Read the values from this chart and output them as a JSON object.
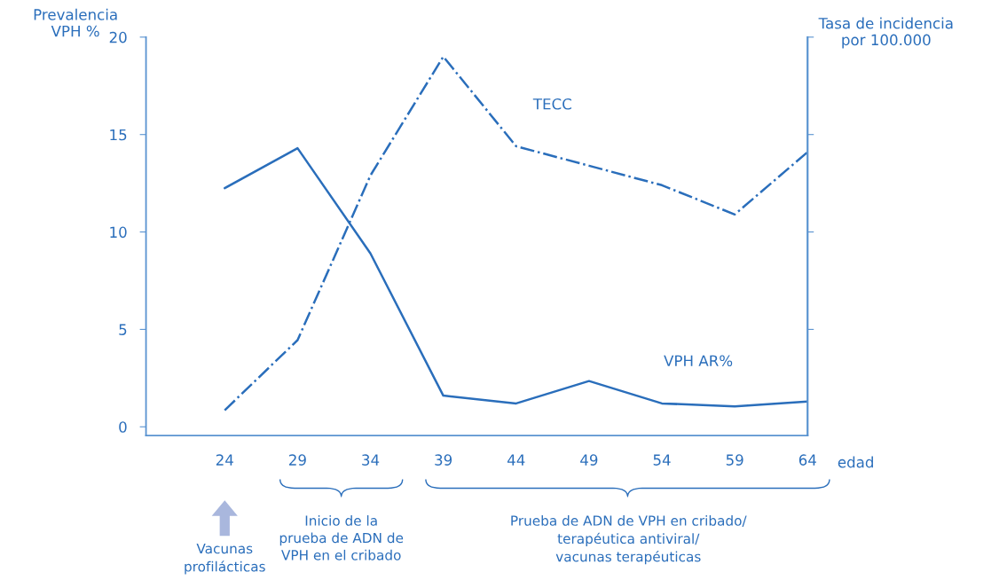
{
  "chart_data": {
    "type": "line",
    "ylabel": "Prevalencia\nVPH %",
    "y2label": "Tasa de incidencia\npor 100.000",
    "xlabel": "edad",
    "x": [
      24,
      29,
      34,
      39,
      44,
      49,
      54,
      59,
      64
    ],
    "xlim": [
      18.6,
      64
    ],
    "xticks": [
      24,
      29,
      34,
      39,
      44,
      49,
      54,
      59,
      64
    ],
    "ylim": [
      -0.45,
      20
    ],
    "yticks": [
      0,
      5,
      10,
      15,
      20
    ],
    "grid": false,
    "legend": false,
    "marker": "none",
    "series": [
      {
        "name": "VPH AR%",
        "color": "#2a6ebb",
        "line_style": "solid",
        "values": [
          12.25,
          14.3,
          8.9,
          1.6,
          1.2,
          2.35,
          1.2,
          1.05,
          1.3
        ]
      },
      {
        "name": "TECC",
        "color": "#2a6ebb",
        "line_style": "dashdot",
        "values": [
          0.85,
          4.45,
          12.9,
          19.0,
          14.4,
          13.4,
          12.4,
          10.9,
          14.1
        ]
      }
    ],
    "annotations": [
      "Vacunas\nprofilácticas",
      "Inicio de la\nprueba de ADN de\nVPH en el cribado",
      "Prueba de ADN de VPH en cribado/\nterapéutica antiviral/\nvacunas terapéuticas"
    ]
  }
}
